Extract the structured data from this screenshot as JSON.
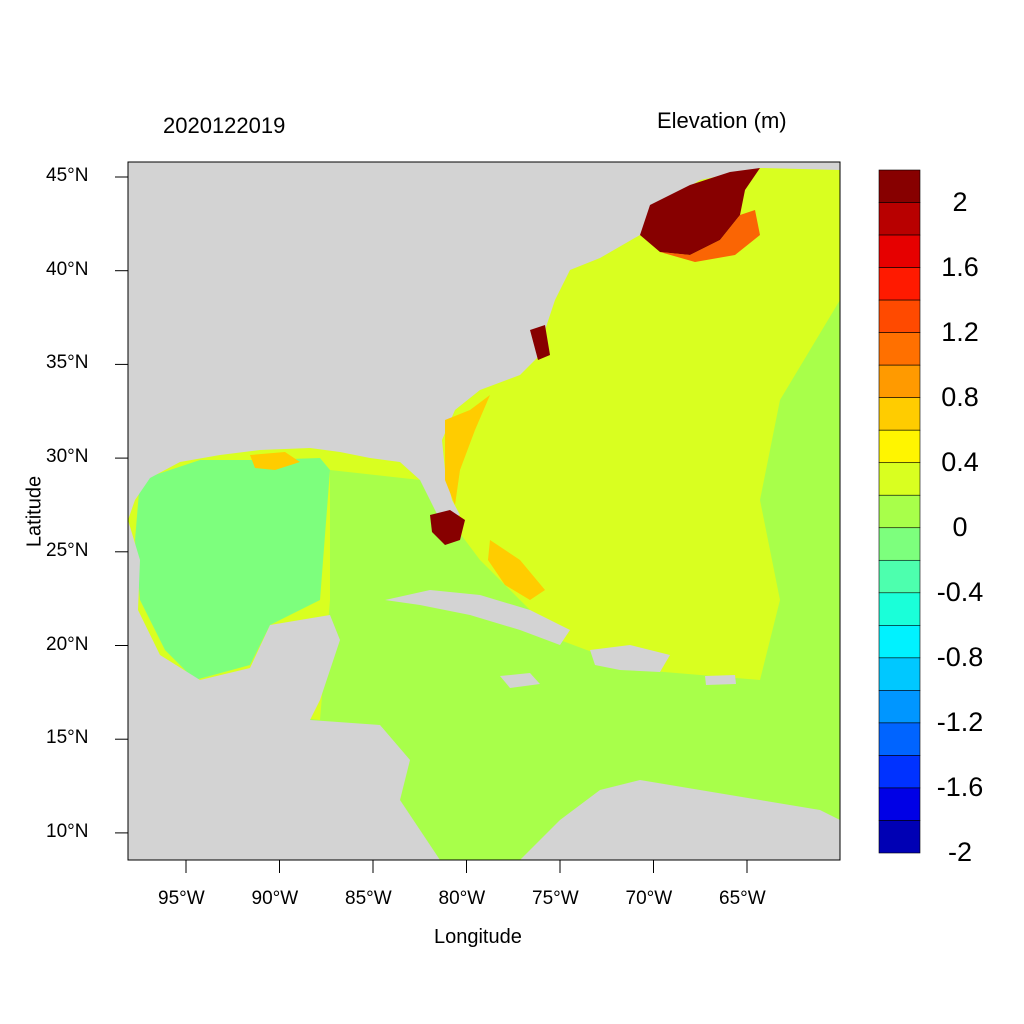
{
  "timestamp": "2020122019",
  "variable_title": "Elevation (m)",
  "xlabel": "Longitude",
  "ylabel": "Latitude",
  "lat_ticks": [
    "45°N",
    "40°N",
    "35°N",
    "30°N",
    "25°N",
    "20°N",
    "15°N",
    "10°N"
  ],
  "lon_ticks": [
    "95°W",
    "90°W",
    "85°W",
    "80°W",
    "75°W",
    "70°W",
    "65°W"
  ],
  "legend": {
    "colors": [
      "#870000",
      "#b80000",
      "#e60000",
      "#ff1a00",
      "#ff4a00",
      "#ff7000",
      "#ff9a00",
      "#ffcc00",
      "#fff500",
      "#d9ff20",
      "#a8ff4a",
      "#7dff7d",
      "#4dffae",
      "#1affd9",
      "#00f2ff",
      "#00c8ff",
      "#0096ff",
      "#0064ff",
      "#0032ff",
      "#0000e6",
      "#0000b4"
    ],
    "labels": [
      "2",
      "1.6",
      "1.2",
      "0.8",
      "0.4",
      "0",
      "-0.4",
      "-0.8",
      "-1.2",
      "-1.6",
      "-2"
    ]
  },
  "map": {
    "land_color": "#d3d3d3",
    "ocean_color": "#d9ff20",
    "caribbean_color": "#a8ff4a",
    "gulf_color": "#7dff7d",
    "surge_color": "#870000"
  }
}
